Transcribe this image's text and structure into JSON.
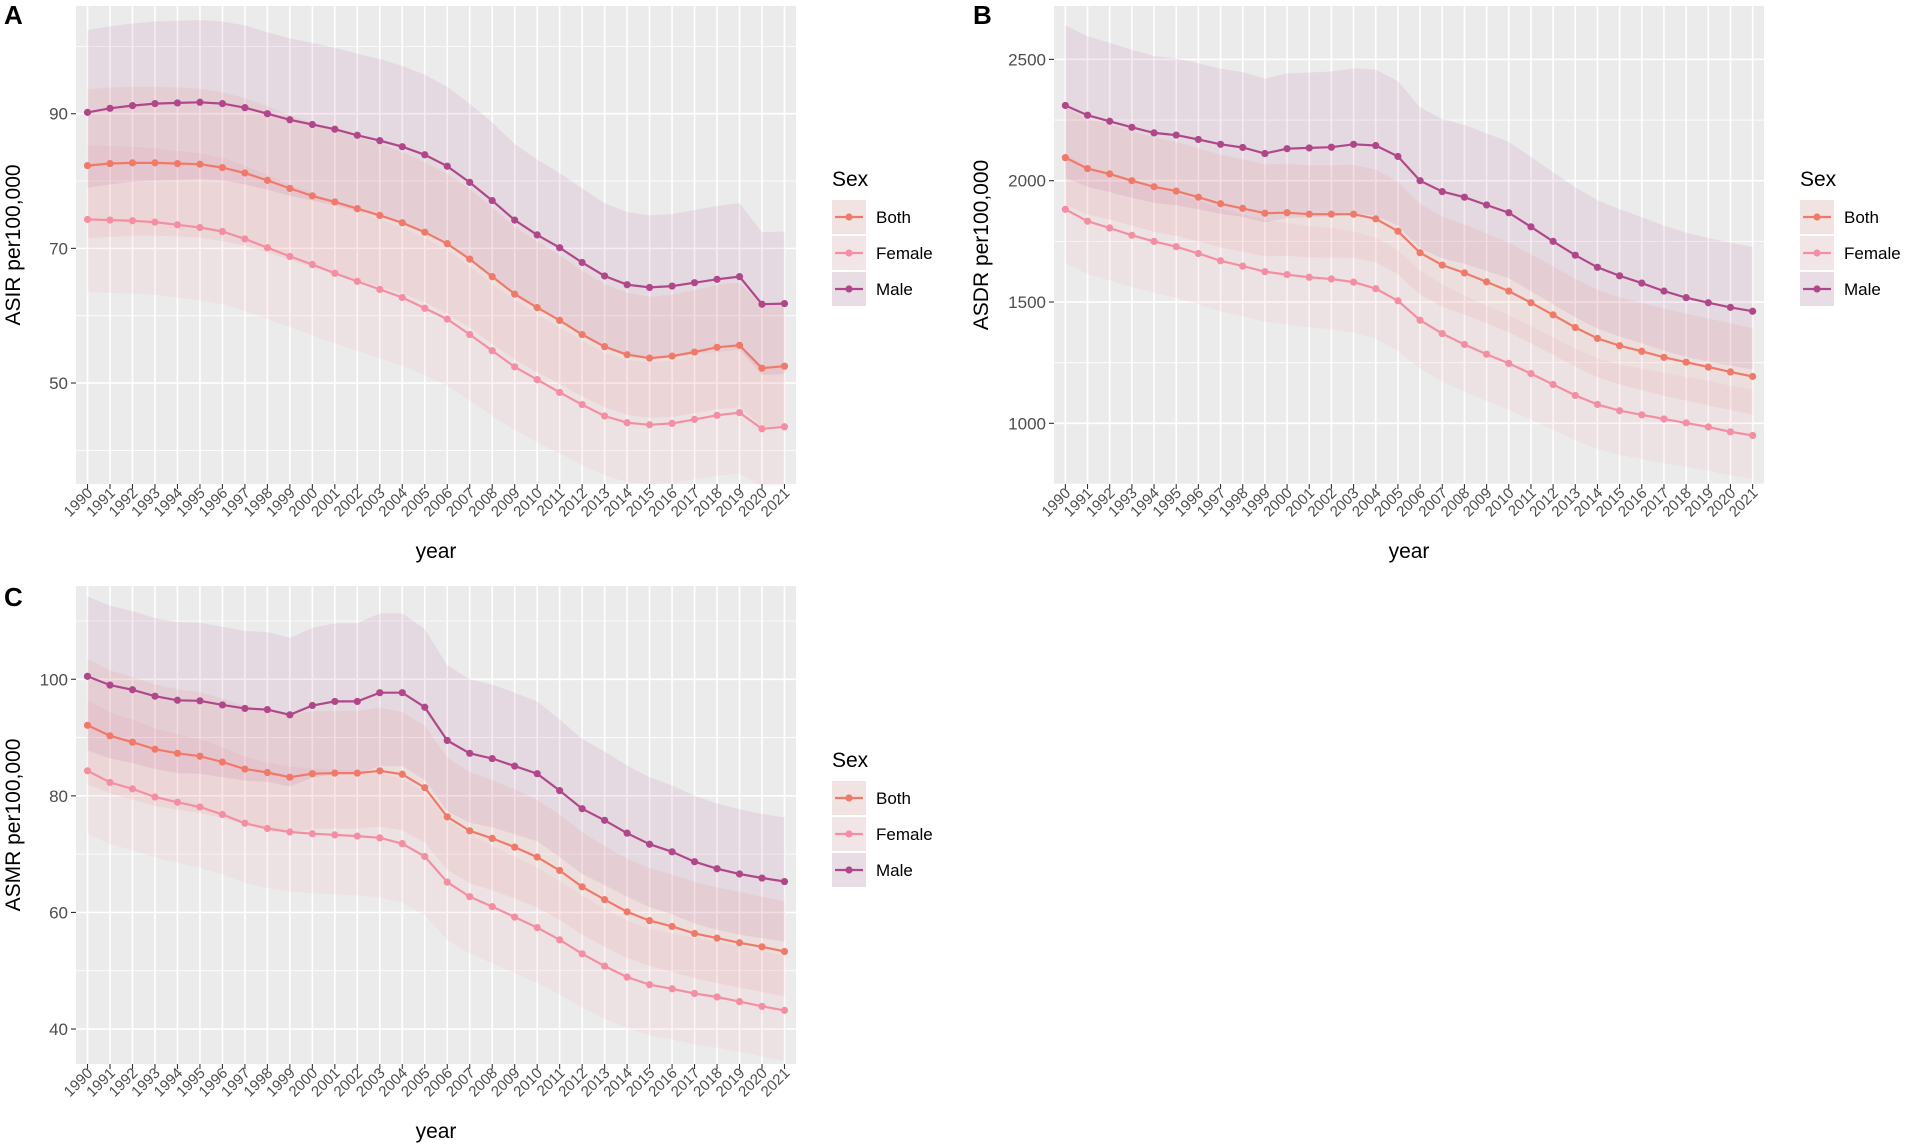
{
  "chart_data": [
    {
      "id": "A",
      "type": "line",
      "panel_label": "A",
      "xlabel": "year",
      "ylabel": "ASIR per100,000",
      "ylim": [
        35,
        106
      ],
      "yticks": [
        50,
        70,
        90
      ],
      "categories": [
        "1990",
        "1991",
        "1992",
        "1993",
        "1994",
        "1995",
        "1996",
        "1997",
        "1998",
        "1999",
        "2000",
        "2001",
        "2002",
        "2003",
        "2004",
        "2005",
        "2006",
        "2007",
        "2008",
        "2009",
        "2010",
        "2011",
        "2012",
        "2013",
        "2014",
        "2015",
        "2016",
        "2017",
        "2018",
        "2019",
        "2020",
        "2021"
      ],
      "legend": {
        "title": "Sex",
        "position": "right"
      },
      "series": [
        {
          "name": "Both",
          "color": "#f07a6a",
          "values": [
            82.3,
            82.6,
            82.7,
            82.7,
            82.6,
            82.5,
            82.0,
            81.2,
            80.1,
            78.9,
            77.8,
            76.9,
            75.9,
            74.9,
            73.8,
            72.4,
            70.7,
            68.4,
            65.8,
            63.2,
            61.2,
            59.3,
            57.2,
            55.4,
            54.2,
            53.7,
            54.0,
            54.6,
            55.3,
            55.6,
            52.2,
            52.5
          ],
          "lower": [
            71.5,
            71.7,
            71.9,
            71.9,
            71.8,
            71.6,
            71.1,
            70.4,
            69.4,
            68.3,
            67.2,
            66.3,
            65.3,
            64.3,
            63.3,
            62.0,
            60.3,
            58.2,
            55.8,
            53.5,
            51.6,
            49.9,
            48.0,
            46.4,
            45.3,
            44.8,
            45.0,
            45.5,
            46.1,
            46.4,
            43.5,
            43.7
          ],
          "upper": [
            93.6,
            93.9,
            94.0,
            94.0,
            93.9,
            93.7,
            93.2,
            92.3,
            91.1,
            89.8,
            88.6,
            87.6,
            86.6,
            85.5,
            84.3,
            82.8,
            81.1,
            78.8,
            76.1,
            73.2,
            71.0,
            69.0,
            66.7,
            64.7,
            63.4,
            62.8,
            63.1,
            63.8,
            64.6,
            64.9,
            61.4,
            61.7
          ]
        },
        {
          "name": "Female",
          "color": "#f48fa3",
          "values": [
            74.3,
            74.2,
            74.1,
            73.9,
            73.5,
            73.1,
            72.5,
            71.4,
            70.1,
            68.8,
            67.6,
            66.3,
            65.1,
            63.9,
            62.7,
            61.1,
            59.5,
            57.2,
            54.8,
            52.4,
            50.5,
            48.6,
            46.8,
            45.1,
            44.1,
            43.8,
            44.0,
            44.6,
            45.2,
            45.6,
            43.2,
            43.5
          ],
          "lower": [
            63.5,
            63.4,
            63.3,
            63.1,
            62.7,
            62.3,
            61.7,
            60.7,
            59.5,
            58.3,
            57.1,
            55.9,
            54.8,
            53.7,
            52.6,
            51.1,
            49.6,
            47.4,
            45.1,
            43.0,
            41.2,
            39.5,
            37.8,
            36.3,
            35.3,
            35.0,
            35.2,
            35.7,
            36.2,
            36.6,
            34.6,
            34.8
          ],
          "upper": [
            85.3,
            85.2,
            85.1,
            84.9,
            84.5,
            84.1,
            83.5,
            82.3,
            80.9,
            79.5,
            78.2,
            76.9,
            75.6,
            74.3,
            73.1,
            71.5,
            69.8,
            67.3,
            64.8,
            62.3,
            60.2,
            58.2,
            56.3,
            54.5,
            53.4,
            53.1,
            53.3,
            54.0,
            54.7,
            55.1,
            52.5,
            52.8
          ]
        },
        {
          "name": "Male",
          "color": "#b0478a",
          "values": [
            90.2,
            90.8,
            91.2,
            91.5,
            91.6,
            91.7,
            91.5,
            90.9,
            90.0,
            89.1,
            88.4,
            87.7,
            86.8,
            86.0,
            85.1,
            83.9,
            82.2,
            79.8,
            77.1,
            74.2,
            72.0,
            70.1,
            67.9,
            65.9,
            64.6,
            64.2,
            64.4,
            64.9,
            65.4,
            65.8,
            61.7,
            61.8
          ],
          "lower": [
            79.0,
            79.5,
            79.9,
            80.1,
            80.2,
            80.3,
            80.1,
            79.5,
            78.7,
            77.8,
            77.1,
            76.4,
            75.5,
            74.7,
            73.8,
            72.6,
            70.9,
            68.6,
            66.0,
            63.3,
            61.2,
            59.4,
            57.3,
            55.4,
            54.1,
            53.6,
            53.8,
            54.2,
            54.6,
            55.0,
            51.2,
            51.3
          ],
          "upper": [
            102.4,
            103.0,
            103.4,
            103.7,
            103.8,
            103.9,
            103.7,
            103.1,
            102.1,
            101.2,
            100.5,
            99.8,
            98.9,
            98.1,
            97.1,
            95.8,
            94.0,
            91.5,
            88.7,
            85.5,
            83.2,
            81.2,
            78.9,
            76.7,
            75.4,
            74.9,
            75.1,
            75.7,
            76.3,
            76.7,
            72.4,
            72.5
          ]
        }
      ]
    },
    {
      "id": "B",
      "type": "line",
      "panel_label": "B",
      "xlabel": "year",
      "ylabel": "ASDR per100,000",
      "ylim": [
        750,
        2720
      ],
      "yticks": [
        1000,
        1500,
        2000,
        2500
      ],
      "categories": [
        "1990",
        "1991",
        "1992",
        "1993",
        "1994",
        "1995",
        "1996",
        "1997",
        "1998",
        "1999",
        "2000",
        "2001",
        "2002",
        "2003",
        "2004",
        "2005",
        "2006",
        "2007",
        "2008",
        "2009",
        "2010",
        "2011",
        "2012",
        "2013",
        "2014",
        "2015",
        "2016",
        "2017",
        "2018",
        "2019",
        "2020",
        "2021"
      ],
      "legend": {
        "title": "Sex",
        "position": "right"
      },
      "series": [
        {
          "name": "Both",
          "color": "#f07a6a",
          "values": [
            2095,
            2050,
            2028,
            2000,
            1975,
            1957,
            1932,
            1905,
            1886,
            1866,
            1868,
            1862,
            1862,
            1862,
            1843,
            1792,
            1703,
            1652,
            1620,
            1583,
            1545,
            1497,
            1447,
            1395,
            1350,
            1320,
            1297,
            1272,
            1252,
            1232,
            1212,
            1193
          ],
          "lower": [
            1900,
            1860,
            1840,
            1815,
            1790,
            1773,
            1750,
            1725,
            1707,
            1689,
            1690,
            1684,
            1683,
            1682,
            1664,
            1615,
            1530,
            1480,
            1448,
            1412,
            1375,
            1330,
            1282,
            1233,
            1190,
            1160,
            1137,
            1113,
            1094,
            1074,
            1055,
            1036
          ],
          "upper": [
            2300,
            2255,
            2232,
            2204,
            2178,
            2160,
            2134,
            2107,
            2088,
            2068,
            2070,
            2064,
            2064,
            2065,
            2046,
            1995,
            1905,
            1852,
            1820,
            1783,
            1745,
            1697,
            1647,
            1595,
            1550,
            1520,
            1497,
            1472,
            1452,
            1432,
            1412,
            1392
          ]
        },
        {
          "name": "Female",
          "color": "#f48fa3",
          "values": [
            1882,
            1833,
            1805,
            1775,
            1750,
            1728,
            1700,
            1670,
            1648,
            1625,
            1613,
            1602,
            1595,
            1582,
            1555,
            1505,
            1425,
            1370,
            1325,
            1285,
            1247,
            1205,
            1160,
            1115,
            1078,
            1052,
            1035,
            1018,
            1002,
            985,
            965,
            950
          ],
          "lower": [
            1660,
            1615,
            1590,
            1562,
            1538,
            1517,
            1490,
            1462,
            1441,
            1419,
            1407,
            1396,
            1388,
            1375,
            1348,
            1300,
            1225,
            1172,
            1130,
            1092,
            1056,
            1016,
            973,
            930,
            895,
            870,
            853,
            836,
            821,
            805,
            786,
            772
          ],
          "upper": [
            2110,
            2058,
            2028,
            1996,
            1970,
            1946,
            1917,
            1885,
            1862,
            1838,
            1825,
            1813,
            1805,
            1792,
            1765,
            1714,
            1630,
            1573,
            1527,
            1485,
            1445,
            1401,
            1354,
            1307,
            1269,
            1242,
            1225,
            1208,
            1192,
            1175,
            1155,
            1140
          ]
        },
        {
          "name": "Male",
          "color": "#b0478a",
          "values": [
            2310,
            2270,
            2245,
            2220,
            2197,
            2188,
            2170,
            2150,
            2137,
            2112,
            2132,
            2135,
            2138,
            2150,
            2145,
            2100,
            2000,
            1955,
            1932,
            1900,
            1868,
            1810,
            1750,
            1693,
            1643,
            1608,
            1578,
            1545,
            1518,
            1497,
            1478,
            1462
          ],
          "lower": [
            2010,
            1975,
            1953,
            1930,
            1908,
            1899,
            1882,
            1863,
            1851,
            1828,
            1846,
            1849,
            1852,
            1863,
            1858,
            1815,
            1722,
            1680,
            1658,
            1628,
            1598,
            1545,
            1490,
            1437,
            1391,
            1358,
            1330,
            1299,
            1274,
            1255,
            1237,
            1222
          ],
          "upper": [
            2640,
            2595,
            2568,
            2540,
            2514,
            2504,
            2484,
            2462,
            2448,
            2420,
            2442,
            2446,
            2450,
            2463,
            2458,
            2410,
            2302,
            2254,
            2230,
            2195,
            2160,
            2098,
            2035,
            1973,
            1920,
            1882,
            1850,
            1815,
            1786,
            1764,
            1744,
            1727
          ]
        }
      ]
    },
    {
      "id": "C",
      "type": "line",
      "panel_label": "C",
      "xlabel": "year",
      "ylabel": "ASMR per100,000",
      "ylim": [
        34,
        116
      ],
      "yticks": [
        40,
        60,
        80,
        100
      ],
      "categories": [
        "1990",
        "1991",
        "1992",
        "1993",
        "1994",
        "1995",
        "1996",
        "1997",
        "1998",
        "1999",
        "2000",
        "2001",
        "2002",
        "2003",
        "2004",
        "2005",
        "2006",
        "2007",
        "2008",
        "2009",
        "2010",
        "2011",
        "2012",
        "2013",
        "2014",
        "2015",
        "2016",
        "2017",
        "2018",
        "2019",
        "2020",
        "2021"
      ],
      "legend": {
        "title": "Sex",
        "position": "right"
      },
      "series": [
        {
          "name": "Both",
          "color": "#f07a6a",
          "values": [
            92.1,
            90.3,
            89.2,
            88.0,
            87.3,
            86.8,
            85.8,
            84.6,
            84.0,
            83.2,
            83.8,
            83.9,
            83.9,
            84.3,
            83.7,
            81.4,
            76.4,
            74.0,
            72.7,
            71.2,
            69.5,
            67.2,
            64.4,
            62.2,
            60.1,
            58.6,
            57.6,
            56.4,
            55.6,
            54.8,
            54.1,
            53.3
          ],
          "lower": [
            82.0,
            80.4,
            79.4,
            78.3,
            77.6,
            77.1,
            76.2,
            75.1,
            74.5,
            73.8,
            74.3,
            74.4,
            74.4,
            74.7,
            74.1,
            72.0,
            67.3,
            65.0,
            63.8,
            62.4,
            60.8,
            58.7,
            56.2,
            54.1,
            52.2,
            50.8,
            49.8,
            48.7,
            47.9,
            47.1,
            46.4,
            45.6
          ],
          "upper": [
            103.4,
            101.5,
            100.4,
            99.1,
            98.3,
            97.8,
            96.7,
            95.4,
            94.8,
            93.9,
            94.5,
            94.6,
            94.6,
            95.1,
            94.4,
            92.0,
            86.6,
            84.1,
            82.7,
            81.1,
            79.3,
            76.8,
            73.8,
            71.4,
            69.2,
            67.6,
            66.5,
            65.2,
            64.3,
            63.5,
            62.7,
            61.9
          ]
        },
        {
          "name": "Female",
          "color": "#f48fa3",
          "values": [
            84.3,
            82.3,
            81.2,
            79.8,
            78.9,
            78.1,
            76.8,
            75.3,
            74.4,
            73.8,
            73.5,
            73.3,
            73.1,
            72.8,
            71.8,
            69.6,
            65.2,
            62.7,
            61.0,
            59.2,
            57.4,
            55.3,
            52.9,
            50.8,
            48.9,
            47.6,
            46.9,
            46.1,
            45.5,
            44.7,
            43.9,
            43.2
          ],
          "lower": [
            73.5,
            71.7,
            70.7,
            69.4,
            68.5,
            67.7,
            66.5,
            65.1,
            64.2,
            63.6,
            63.3,
            63.1,
            62.9,
            62.6,
            61.6,
            59.5,
            55.3,
            52.9,
            51.3,
            49.6,
            47.9,
            45.9,
            43.7,
            41.8,
            40.1,
            38.9,
            38.2,
            37.4,
            36.8,
            36.1,
            35.3,
            34.6
          ],
          "upper": [
            96.4,
            94.3,
            93.1,
            91.6,
            90.6,
            89.7,
            88.3,
            86.7,
            85.7,
            85.0,
            84.7,
            84.5,
            84.3,
            84.0,
            82.9,
            80.6,
            75.9,
            73.3,
            71.5,
            69.6,
            67.7,
            65.4,
            62.9,
            60.6,
            58.6,
            57.2,
            56.4,
            55.6,
            55.0,
            54.2,
            53.4,
            52.6
          ]
        },
        {
          "name": "Male",
          "color": "#b0478a",
          "values": [
            100.5,
            99.0,
            98.2,
            97.1,
            96.4,
            96.3,
            95.6,
            95.0,
            94.8,
            93.9,
            95.5,
            96.2,
            96.2,
            97.7,
            97.7,
            95.2,
            89.5,
            87.3,
            86.4,
            85.1,
            83.8,
            80.9,
            77.8,
            75.8,
            73.6,
            71.7,
            70.4,
            68.7,
            67.5,
            66.6,
            65.9,
            65.3
          ],
          "lower": [
            87.8,
            86.4,
            85.6,
            84.6,
            83.9,
            83.8,
            83.2,
            82.6,
            82.4,
            81.6,
            83.1,
            83.7,
            83.7,
            85.1,
            85.1,
            82.7,
            77.4,
            75.4,
            74.6,
            73.4,
            72.2,
            69.5,
            66.6,
            64.7,
            62.7,
            60.9,
            59.7,
            58.1,
            57.0,
            56.2,
            55.6,
            55.0
          ],
          "upper": [
            114.2,
            112.6,
            111.7,
            110.5,
            109.8,
            109.7,
            109.0,
            108.3,
            108.1,
            107.1,
            108.8,
            109.6,
            109.6,
            111.3,
            111.3,
            108.6,
            102.4,
            100.0,
            99.1,
            97.7,
            96.2,
            93.1,
            89.8,
            87.6,
            85.2,
            83.2,
            81.8,
            80.0,
            78.7,
            77.7,
            76.9,
            76.3
          ]
        }
      ]
    }
  ]
}
